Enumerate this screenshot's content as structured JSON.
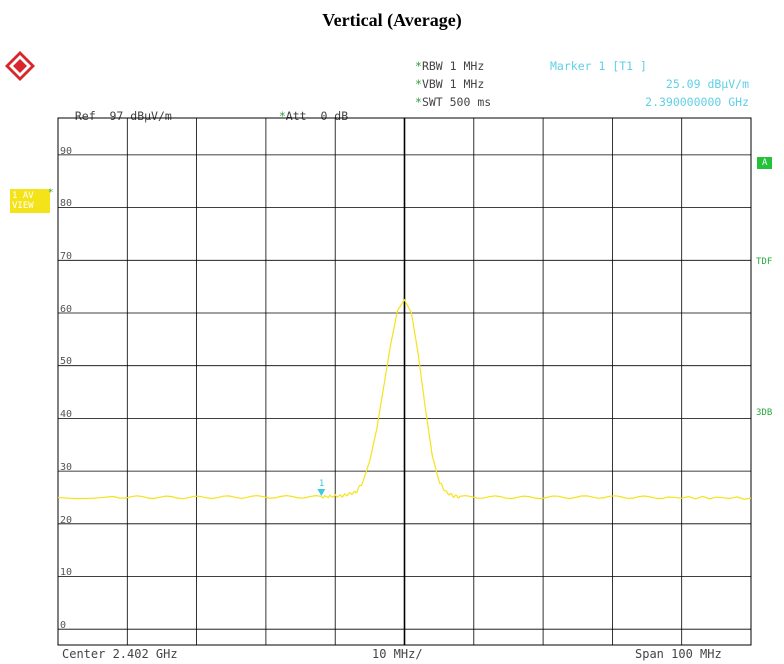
{
  "title": "Vertical (Average)",
  "header": {
    "ref_label": "Ref",
    "ref_value": "97 dBµV/m",
    "att_label": "Att",
    "att_value": "0 dB",
    "rbw": "RBW 1 MHz",
    "vbw": "VBW 1 MHz",
    "swt": "SWT 500 ms",
    "marker_title": "Marker 1 [T1 ]",
    "marker_level": "25.09 dBµV/m",
    "marker_freq": "2.390000000 GHz"
  },
  "trace_label": {
    "line1": "1 AV",
    "line2": "VIEW"
  },
  "side_tags": {
    "a": "A",
    "tdf": "TDF",
    "db3": "3DB"
  },
  "footer": {
    "center": "Center 2.402 GHz",
    "div": "10 MHz/",
    "span": "Span 100 MHz"
  },
  "marker_label": "1",
  "colors": {
    "trace": "#f5e31a",
    "marker": "#3ec9e0",
    "grid": "#000000",
    "accent_green": "#23c23a"
  },
  "chart_data": {
    "type": "line",
    "title": "Vertical (Average)",
    "xlabel": "",
    "ylabel": "",
    "x_unit": "GHz",
    "y_unit": "dBµV/m",
    "xlim": [
      2.352,
      2.452
    ],
    "ylim": [
      -3,
      97
    ],
    "y_ticks": [
      0,
      10,
      20,
      30,
      40,
      50,
      60,
      70,
      80,
      90
    ],
    "grid": true,
    "series": [
      {
        "x": [
          2.352,
          2.36,
          2.37,
          2.38,
          2.39,
          2.393,
          2.395,
          2.396,
          2.397,
          2.398,
          2.399,
          2.4,
          2.401,
          2.402,
          2.403,
          2.404,
          2.405,
          2.406,
          2.407,
          2.408,
          2.409,
          2.41,
          2.42,
          2.43,
          2.44,
          2.452
        ],
        "y": [
          25.0,
          25.1,
          25.0,
          25.1,
          25.1,
          25.3,
          26.0,
          28.0,
          32.0,
          38.0,
          46.0,
          54.0,
          60.5,
          62.5,
          60.0,
          52.0,
          42.0,
          33.0,
          28.0,
          26.0,
          25.3,
          25.1,
          25.0,
          25.1,
          25.0,
          24.9
        ]
      }
    ],
    "marker": {
      "x": 2.39,
      "y": 25.09,
      "label": "1"
    }
  }
}
